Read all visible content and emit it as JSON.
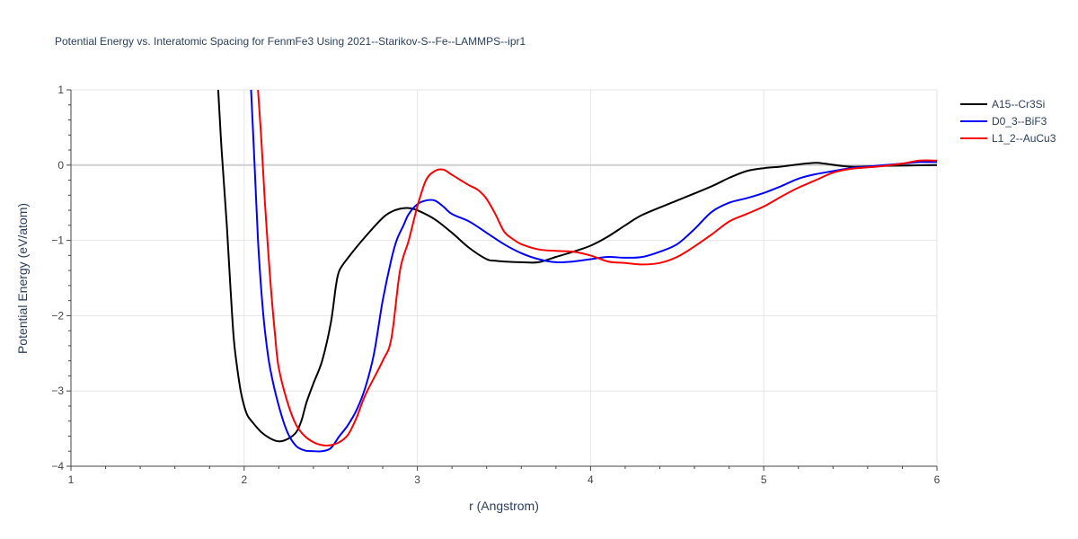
{
  "chart_data": {
    "type": "line",
    "title": "Potential Energy vs. Interatomic Spacing for FenmFe3 Using 2021--Starikov-S--Fe--LAMMPS--ipr1",
    "xlabel": "r (Angstrom)",
    "ylabel": "Potential Energy (eV/atom)",
    "xlim": [
      1,
      6
    ],
    "ylim": [
      -4,
      1
    ],
    "xticks": [
      "1",
      "2",
      "3",
      "4",
      "5",
      "6"
    ],
    "yticks": [
      "1",
      "0",
      "−1",
      "−2",
      "−3",
      "−4"
    ],
    "grid": true,
    "legend_position": "top-right",
    "series": [
      {
        "name": "A15--Cr3Si",
        "color": "#000000",
        "x": [
          1.85,
          1.87,
          1.9,
          1.92,
          1.94,
          1.96,
          1.98,
          2.0,
          2.02,
          2.05,
          2.1,
          2.15,
          2.2,
          2.25,
          2.3,
          2.33,
          2.36,
          2.4,
          2.45,
          2.5,
          2.53,
          2.55,
          2.6,
          2.7,
          2.8,
          2.85,
          2.9,
          2.95,
          3.0,
          3.1,
          3.2,
          3.3,
          3.4,
          3.45,
          3.5,
          3.6,
          3.7,
          3.8,
          3.9,
          4.0,
          4.1,
          4.2,
          4.3,
          4.5,
          4.7,
          4.8,
          4.9,
          5.0,
          5.1,
          5.2,
          5.3,
          5.35,
          5.5,
          5.7,
          6.0
        ],
        "y": [
          1.0,
          0.2,
          -0.8,
          -1.6,
          -2.3,
          -2.7,
          -3.0,
          -3.2,
          -3.33,
          -3.42,
          -3.55,
          -3.63,
          -3.67,
          -3.64,
          -3.55,
          -3.4,
          -3.15,
          -2.9,
          -2.6,
          -2.1,
          -1.6,
          -1.4,
          -1.23,
          -0.95,
          -0.7,
          -0.62,
          -0.58,
          -0.57,
          -0.6,
          -0.72,
          -0.9,
          -1.1,
          -1.25,
          -1.27,
          -1.28,
          -1.29,
          -1.29,
          -1.22,
          -1.15,
          -1.07,
          -0.95,
          -0.8,
          -0.66,
          -0.47,
          -0.28,
          -0.17,
          -0.08,
          -0.04,
          -0.02,
          0.01,
          0.03,
          0.02,
          -0.02,
          -0.01,
          0.0
        ]
      },
      {
        "name": "D0_3--BiF3",
        "color": "#0000ff",
        "x": [
          2.04,
          2.06,
          2.08,
          2.1,
          2.12,
          2.15,
          2.2,
          2.25,
          2.3,
          2.35,
          2.4,
          2.45,
          2.5,
          2.55,
          2.6,
          2.65,
          2.7,
          2.75,
          2.8,
          2.85,
          2.88,
          2.92,
          2.95,
          3.0,
          3.05,
          3.1,
          3.15,
          3.2,
          3.3,
          3.4,
          3.5,
          3.6,
          3.7,
          3.8,
          3.9,
          4.0,
          4.1,
          4.2,
          4.3,
          4.4,
          4.5,
          4.6,
          4.7,
          4.8,
          4.9,
          5.0,
          5.1,
          5.2,
          5.3,
          5.4,
          5.5,
          5.6,
          5.7,
          5.8,
          5.9,
          6.0
        ],
        "y": [
          1.0,
          0.0,
          -1.0,
          -1.7,
          -2.2,
          -2.7,
          -3.2,
          -3.55,
          -3.73,
          -3.79,
          -3.8,
          -3.8,
          -3.76,
          -3.6,
          -3.45,
          -3.25,
          -2.95,
          -2.5,
          -1.8,
          -1.25,
          -1.0,
          -0.8,
          -0.65,
          -0.52,
          -0.47,
          -0.47,
          -0.55,
          -0.65,
          -0.75,
          -0.9,
          -1.05,
          -1.17,
          -1.25,
          -1.29,
          -1.28,
          -1.25,
          -1.22,
          -1.23,
          -1.22,
          -1.15,
          -1.05,
          -0.85,
          -0.62,
          -0.5,
          -0.44,
          -0.37,
          -0.28,
          -0.18,
          -0.12,
          -0.08,
          -0.04,
          -0.02,
          0.0,
          0.02,
          0.04,
          0.04
        ]
      },
      {
        "name": "L1_2--AuCu3",
        "color": "#ff0000",
        "x": [
          2.08,
          2.1,
          2.12,
          2.15,
          2.18,
          2.2,
          2.25,
          2.3,
          2.35,
          2.4,
          2.45,
          2.5,
          2.55,
          2.6,
          2.65,
          2.7,
          2.8,
          2.85,
          2.9,
          2.95,
          3.0,
          3.05,
          3.1,
          3.15,
          3.2,
          3.25,
          3.3,
          3.35,
          3.4,
          3.45,
          3.5,
          3.55,
          3.6,
          3.7,
          3.8,
          3.9,
          4.0,
          4.1,
          4.2,
          4.3,
          4.4,
          4.5,
          4.6,
          4.7,
          4.8,
          4.9,
          5.0,
          5.1,
          5.2,
          5.3,
          5.4,
          5.5,
          5.6,
          5.7,
          5.8,
          5.9,
          6.0
        ],
        "y": [
          1.0,
          0.3,
          -0.5,
          -1.5,
          -2.3,
          -2.7,
          -3.15,
          -3.45,
          -3.6,
          -3.68,
          -3.72,
          -3.72,
          -3.68,
          -3.58,
          -3.35,
          -3.05,
          -2.6,
          -2.3,
          -1.4,
          -1.0,
          -0.55,
          -0.2,
          -0.08,
          -0.06,
          -0.13,
          -0.2,
          -0.27,
          -0.33,
          -0.45,
          -0.65,
          -0.88,
          -0.98,
          -1.05,
          -1.12,
          -1.14,
          -1.15,
          -1.2,
          -1.28,
          -1.3,
          -1.32,
          -1.3,
          -1.22,
          -1.08,
          -0.92,
          -0.75,
          -0.65,
          -0.55,
          -0.42,
          -0.3,
          -0.2,
          -0.1,
          -0.05,
          -0.03,
          -0.01,
          0.02,
          0.06,
          0.06
        ]
      }
    ]
  }
}
